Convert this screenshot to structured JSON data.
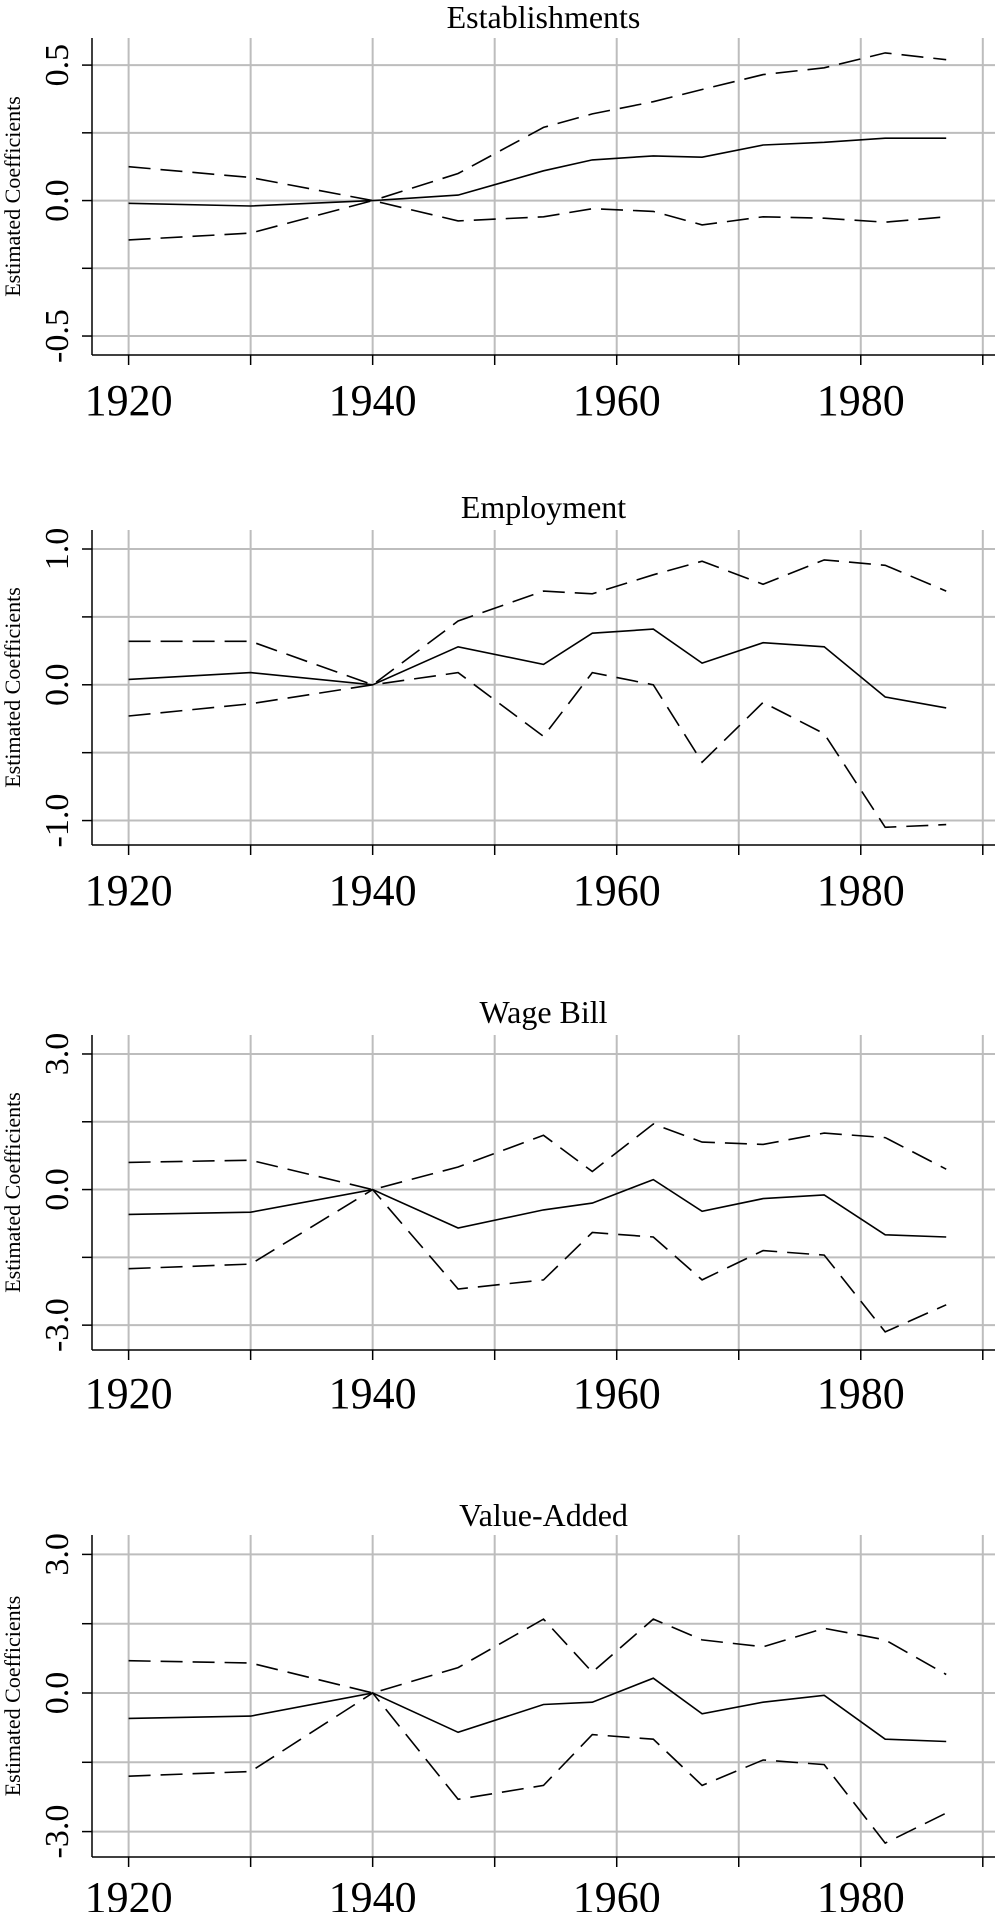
{
  "chart_data": [
    {
      "type": "line",
      "title": "Establishments",
      "ylabel": "Estimated Coefficients",
      "xlim": [
        1917,
        1991
      ],
      "ylim": [
        -0.57,
        0.6
      ],
      "xticks": [
        "1920",
        "1940",
        "1960",
        "1980"
      ],
      "yticks": [
        "-0.5",
        "0.0",
        "0.5"
      ],
      "x": [
        1920,
        1930,
        1940,
        1947,
        1954,
        1958,
        1963,
        1967,
        1972,
        1977,
        1982,
        1987
      ],
      "series": [
        {
          "style": "solid",
          "values": [
            -0.01,
            -0.02,
            0.0,
            0.02,
            0.11,
            0.15,
            0.165,
            0.16,
            0.205,
            0.215,
            0.23,
            0.23
          ]
        },
        {
          "style": "dashed",
          "values": [
            0.125,
            0.085,
            0.0,
            0.1,
            0.27,
            0.32,
            0.365,
            0.41,
            0.465,
            0.49,
            0.545,
            0.52
          ]
        },
        {
          "style": "dashed",
          "values": [
            -0.145,
            -0.12,
            0.0,
            -0.075,
            -0.06,
            -0.03,
            -0.04,
            -0.09,
            -0.06,
            -0.065,
            -0.08,
            -0.06
          ]
        }
      ]
    },
    {
      "type": "line",
      "title": "Employment",
      "ylabel": "Estimated Coefficients",
      "xlim": [
        1917,
        1991
      ],
      "ylim": [
        -1.18,
        1.14
      ],
      "xticks": [
        "1920",
        "1940",
        "1960",
        "1980"
      ],
      "yticks": [
        "-1.0",
        "0.0",
        "1.0"
      ],
      "x": [
        1920,
        1930,
        1940,
        1947,
        1954,
        1958,
        1963,
        1967,
        1972,
        1977,
        1982,
        1987
      ],
      "series": [
        {
          "style": "solid",
          "values": [
            0.04,
            0.09,
            0.0,
            0.28,
            0.15,
            0.38,
            0.41,
            0.16,
            0.31,
            0.28,
            -0.09,
            -0.17
          ]
        },
        {
          "style": "dashed",
          "values": [
            0.32,
            0.32,
            0.0,
            0.47,
            0.69,
            0.67,
            0.81,
            0.91,
            0.74,
            0.92,
            0.88,
            0.69
          ]
        },
        {
          "style": "dashed",
          "values": [
            -0.23,
            -0.14,
            0.0,
            0.09,
            -0.38,
            0.09,
            0.0,
            -0.57,
            -0.13,
            -0.36,
            -1.05,
            -1.03
          ]
        }
      ]
    },
    {
      "type": "line",
      "title": "Wage Bill",
      "ylabel": "Estimated Coefficients",
      "xlim": [
        1917,
        1991
      ],
      "ylim": [
        -3.55,
        3.42
      ],
      "xticks": [
        "1920",
        "1940",
        "1960",
        "1980"
      ],
      "yticks": [
        "-3.0",
        "0.0",
        "3.0"
      ],
      "x": [
        1920,
        1930,
        1940,
        1947,
        1954,
        1958,
        1963,
        1967,
        1972,
        1977,
        1982,
        1987
      ],
      "series": [
        {
          "style": "solid",
          "values": [
            -0.55,
            -0.5,
            0.0,
            -0.85,
            -0.45,
            -0.3,
            0.22,
            -0.48,
            -0.2,
            -0.12,
            -1.0,
            -1.05
          ]
        },
        {
          "style": "dashed",
          "values": [
            0.6,
            0.65,
            0.0,
            0.5,
            1.2,
            0.4,
            1.45,
            1.05,
            1.0,
            1.25,
            1.15,
            0.45
          ]
        },
        {
          "style": "dashed",
          "values": [
            -1.75,
            -1.65,
            0.0,
            -2.2,
            -2.0,
            -0.95,
            -1.05,
            -2.0,
            -1.35,
            -1.45,
            -3.15,
            -2.55
          ]
        }
      ]
    },
    {
      "type": "line",
      "title": "Value-Added",
      "ylabel": "Estimated Coefficients",
      "xlim": [
        1917,
        1991
      ],
      "ylim": [
        -3.55,
        3.42
      ],
      "xticks": [
        "1920",
        "1940",
        "1960",
        "1980"
      ],
      "yticks": [
        "-3.0",
        "0.0",
        "3.0"
      ],
      "x": [
        1920,
        1930,
        1940,
        1947,
        1954,
        1958,
        1963,
        1967,
        1972,
        1977,
        1982,
        1987
      ],
      "series": [
        {
          "style": "solid",
          "values": [
            -0.55,
            -0.5,
            0.0,
            -0.85,
            -0.25,
            -0.2,
            0.32,
            -0.45,
            -0.2,
            -0.05,
            -1.0,
            -1.05
          ]
        },
        {
          "style": "dashed",
          "values": [
            0.7,
            0.65,
            0.0,
            0.55,
            1.6,
            0.45,
            1.6,
            1.15,
            1.0,
            1.4,
            1.15,
            0.4
          ]
        },
        {
          "style": "dashed",
          "values": [
            -1.8,
            -1.7,
            0.0,
            -2.3,
            -2.0,
            -0.9,
            -1.0,
            -2.0,
            -1.45,
            -1.55,
            -3.25,
            -2.6
          ]
        }
      ]
    }
  ]
}
